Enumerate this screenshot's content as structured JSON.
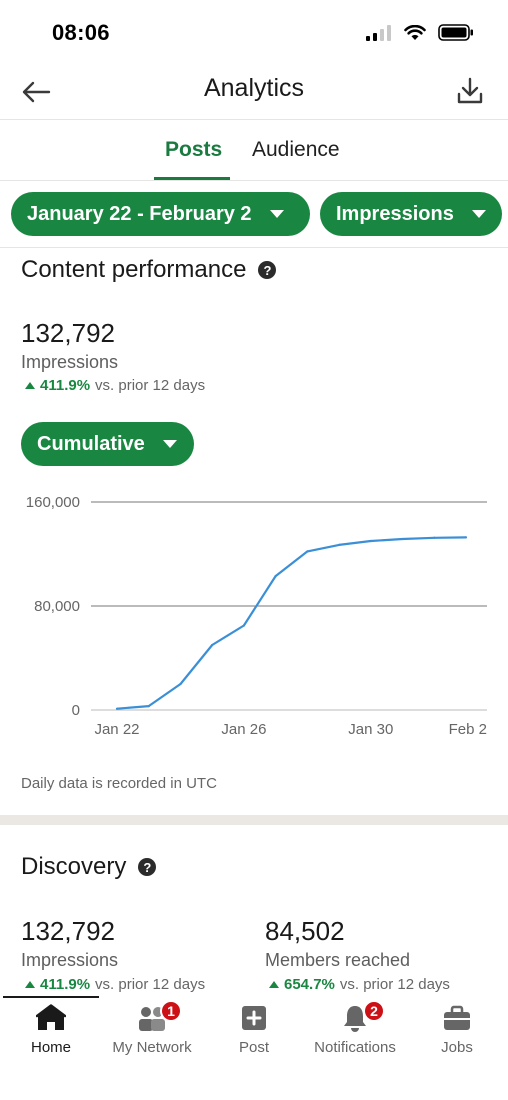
{
  "status_bar": {
    "time": "08:06"
  },
  "header": {
    "title": "Analytics"
  },
  "tabs": [
    {
      "label": "Posts",
      "active": true
    },
    {
      "label": "Audience",
      "active": false
    }
  ],
  "filters": {
    "date_range": "January 22 - February 2",
    "metric": "Impressions"
  },
  "content_performance": {
    "title": "Content performance",
    "value": "132,792",
    "label": "Impressions",
    "change_pct": "411.9%",
    "change_text": "vs. prior 12 days",
    "view_mode": "Cumulative",
    "note": "Daily data is recorded in UTC"
  },
  "chart_data": {
    "type": "line",
    "x_labels": [
      "Jan 22",
      "Jan 26",
      "Jan 30",
      "Feb 2"
    ],
    "x": [
      "Jan 22",
      "Jan 23",
      "Jan 24",
      "Jan 25",
      "Jan 26",
      "Jan 27",
      "Jan 28",
      "Jan 29",
      "Jan 30",
      "Jan 31",
      "Feb 1",
      "Feb 2"
    ],
    "y_ticks": [
      "0",
      "80,000",
      "160,000"
    ],
    "ylim": [
      0,
      160000
    ],
    "series": [
      {
        "values": [
          1000,
          3000,
          20000,
          50000,
          65000,
          103000,
          122000,
          127000,
          130000,
          131500,
          132500,
          132792
        ]
      }
    ],
    "color": "#3a8fd6",
    "grid": true
  },
  "discovery": {
    "title": "Discovery",
    "metrics": [
      {
        "value": "132,792",
        "label": "Impressions",
        "change_pct": "411.9%",
        "change_text": "vs. prior 12 days"
      },
      {
        "value": "84,502",
        "label": "Members reached",
        "change_pct": "654.7%",
        "change_text": "vs. prior 12 days"
      }
    ]
  },
  "bottom_nav": [
    {
      "label": "Home",
      "icon": "home-icon",
      "active": true
    },
    {
      "label": "My Network",
      "icon": "network-icon",
      "badge": "1"
    },
    {
      "label": "Post",
      "icon": "post-icon"
    },
    {
      "label": "Notifications",
      "icon": "bell-icon",
      "badge": "2"
    },
    {
      "label": "Jobs",
      "icon": "briefcase-icon"
    }
  ]
}
